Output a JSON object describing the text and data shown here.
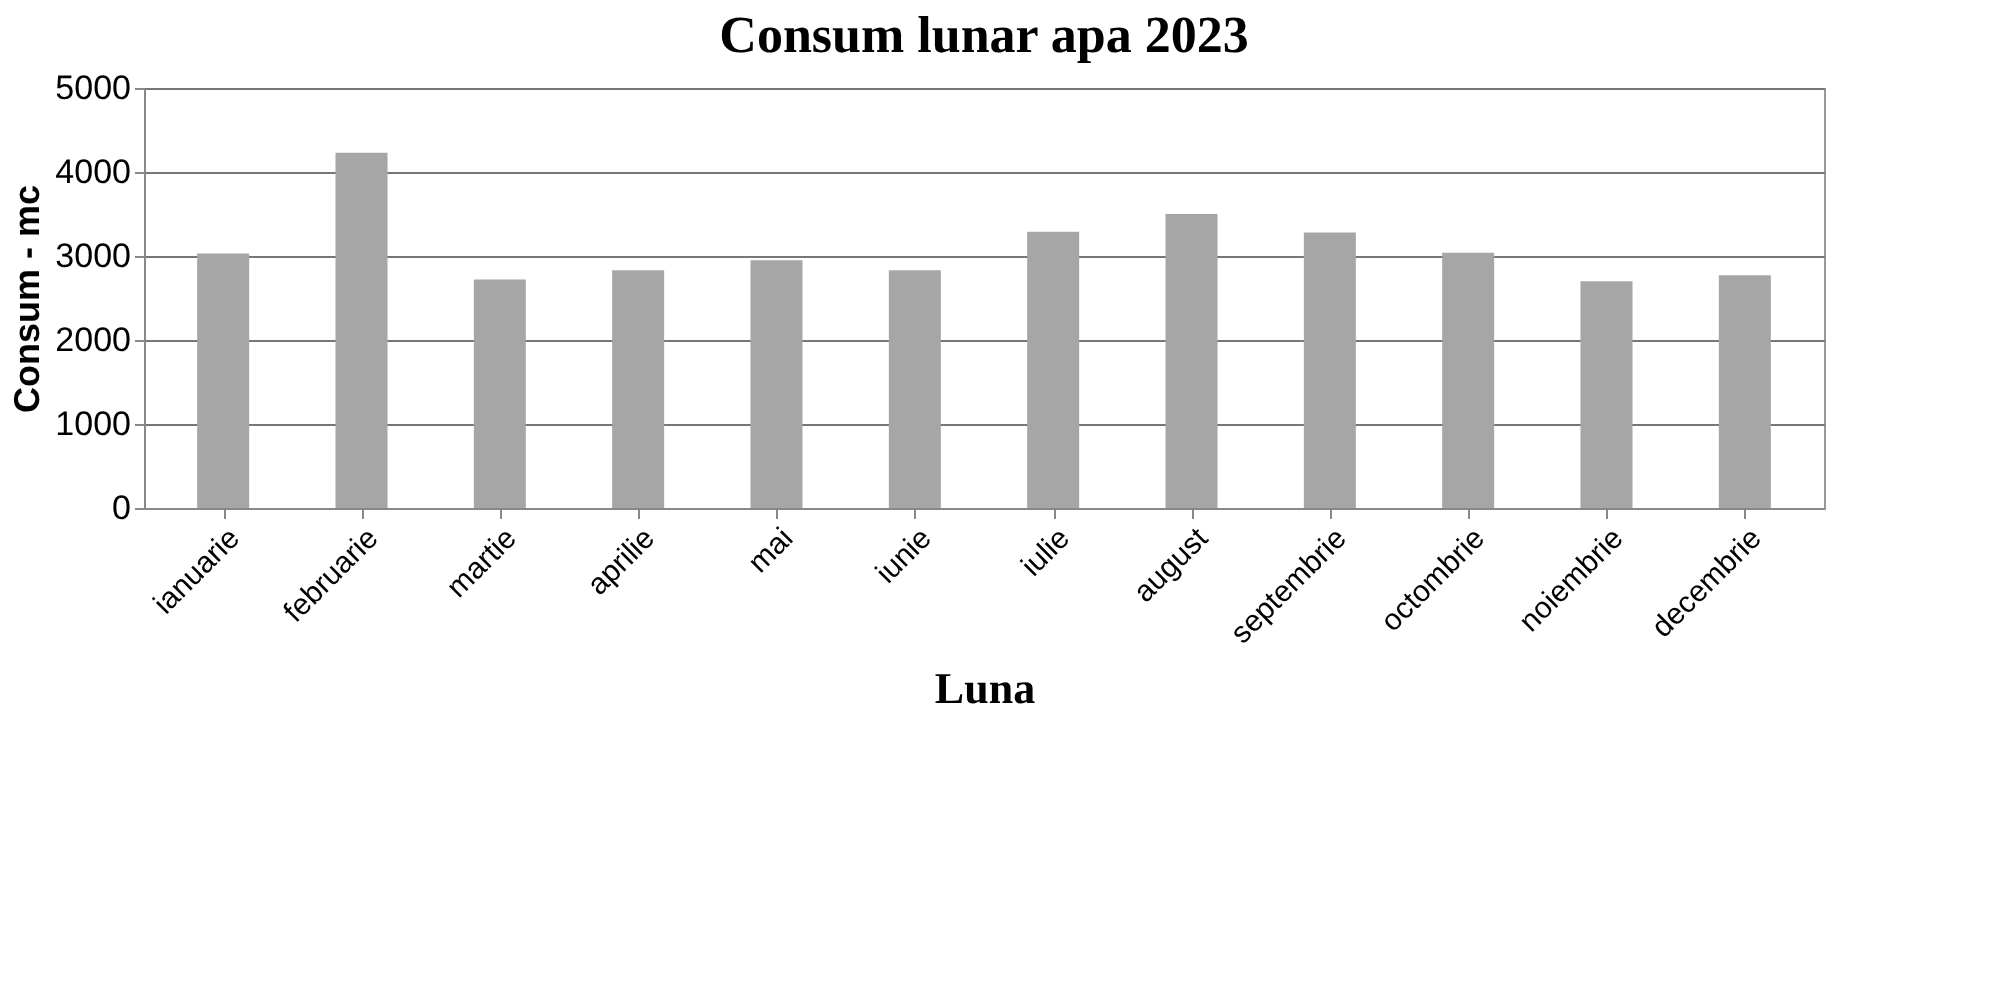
{
  "chart_data": {
    "type": "bar",
    "title": "Consum lunar apa 2023",
    "xlabel": "Luna",
    "ylabel": "Consum - mc",
    "categories": [
      "ianuarie",
      "februarie",
      "martie",
      "aprilie",
      "mai",
      "iunie",
      "iulie",
      "august",
      "septembrie",
      "octombrie",
      "noiembrie",
      "decembrie"
    ],
    "values": [
      3030,
      4230,
      2720,
      2830,
      2950,
      2830,
      3290,
      3500,
      3280,
      3040,
      2700,
      2770
    ],
    "color": "#a6a6a6",
    "ylim": [
      0,
      5000
    ],
    "yticks": [
      0,
      1000,
      2000,
      3000,
      4000,
      5000
    ],
    "grid": "y"
  }
}
